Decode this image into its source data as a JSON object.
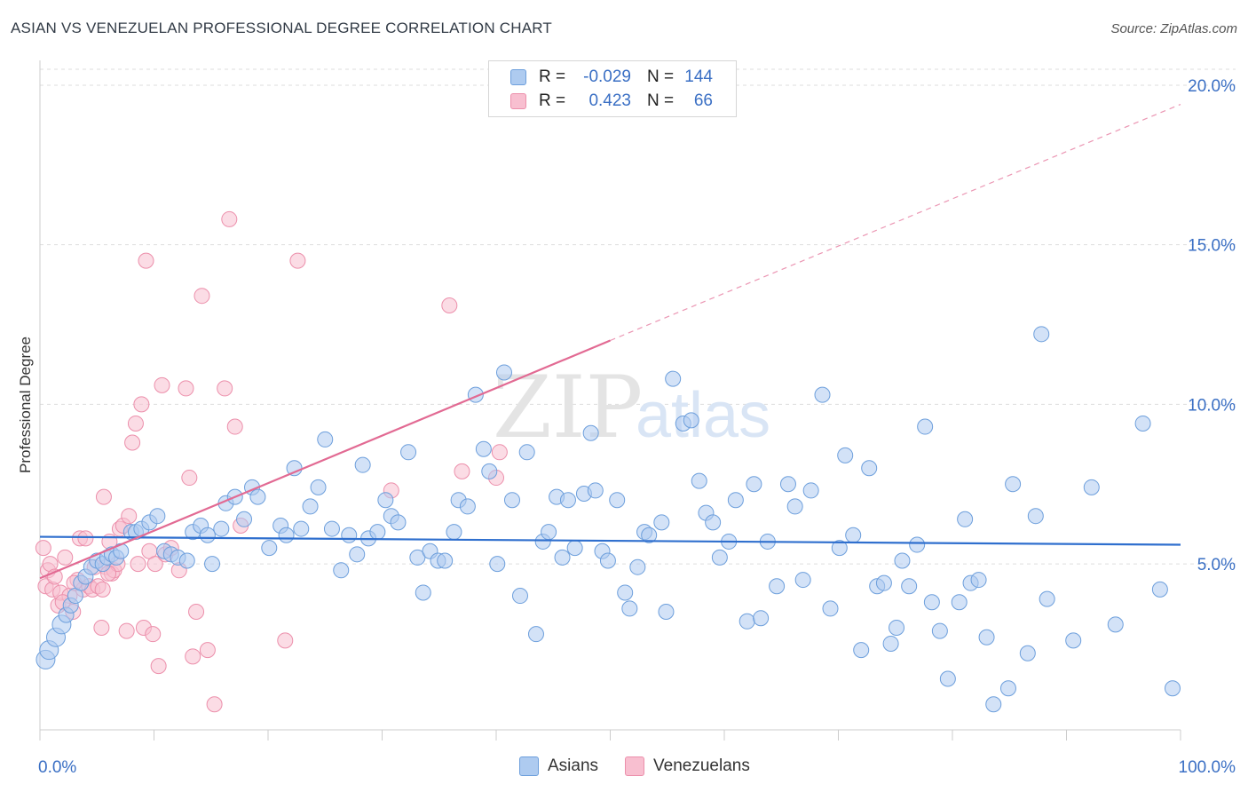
{
  "title": "ASIAN VS VENEZUELAN PROFESSIONAL DEGREE CORRELATION CHART",
  "source": "Source: ZipAtlas.com",
  "watermark": {
    "zip": "ZIP",
    "atlas": "atlas"
  },
  "legend": {
    "rows": [
      {
        "r_label": "R =",
        "r_value": "-0.029",
        "n_label": "N =",
        "n_value": "144"
      },
      {
        "r_label": "R =",
        "r_value": "0.423",
        "n_label": "N =",
        "n_value": "66"
      }
    ]
  },
  "bottom_legend": {
    "asians": "Asians",
    "venezuelans": "Venezuelans"
  },
  "colors": {
    "asian_fill": "#aecbf0",
    "asian_stroke": "#6d9fdc",
    "asian_line": "#2f6fce",
    "venez_fill": "#f8bfd0",
    "venez_stroke": "#ec8fab",
    "venez_line": "#e26a93",
    "axis_label": "#3a6fc4",
    "grid": "#dddddd"
  },
  "chart_data": {
    "type": "scatter",
    "title": "ASIAN VS VENEZUELAN PROFESSIONAL DEGREE CORRELATION CHART",
    "xlabel": "",
    "ylabel": "Professional Degree",
    "xlim": [
      0,
      100
    ],
    "ylim": [
      -0.2,
      20.5
    ],
    "x_tick_labels": [
      "0.0%",
      "100.0%"
    ],
    "y_ticks": [
      5,
      10,
      15,
      20
    ],
    "y_tick_labels": [
      "5.0%",
      "10.0%",
      "15.0%",
      "20.0%"
    ],
    "series": [
      {
        "name": "Asians",
        "r": -0.029,
        "n": 144,
        "trend": {
          "x": [
            0,
            100
          ],
          "y": [
            5.85,
            5.6
          ]
        },
        "points": [
          [
            0.5,
            2.0
          ],
          [
            0.8,
            2.3
          ],
          [
            1.4,
            2.7
          ],
          [
            1.9,
            3.1
          ],
          [
            2.3,
            3.4
          ],
          [
            2.7,
            3.7
          ],
          [
            3.1,
            4.0
          ],
          [
            3.6,
            4.4
          ],
          [
            4.0,
            4.6
          ],
          [
            4.5,
            4.9
          ],
          [
            5.0,
            5.1
          ],
          [
            5.5,
            5.0
          ],
          [
            5.9,
            5.2
          ],
          [
            6.3,
            5.3
          ],
          [
            6.7,
            5.2
          ],
          [
            7.1,
            5.4
          ],
          [
            8.0,
            6.0
          ],
          [
            8.4,
            6.0
          ],
          [
            8.9,
            6.1
          ],
          [
            9.6,
            6.3
          ],
          [
            10.3,
            6.5
          ],
          [
            10.9,
            5.4
          ],
          [
            11.5,
            5.3
          ],
          [
            12.1,
            5.2
          ],
          [
            12.9,
            5.1
          ],
          [
            13.4,
            6.0
          ],
          [
            14.1,
            6.2
          ],
          [
            14.7,
            5.9
          ],
          [
            15.1,
            5.0
          ],
          [
            15.9,
            6.1
          ],
          [
            16.3,
            6.9
          ],
          [
            17.1,
            7.1
          ],
          [
            17.9,
            6.4
          ],
          [
            18.6,
            7.4
          ],
          [
            19.1,
            7.1
          ],
          [
            20.1,
            5.5
          ],
          [
            21.1,
            6.2
          ],
          [
            21.6,
            5.9
          ],
          [
            22.3,
            8.0
          ],
          [
            22.9,
            6.1
          ],
          [
            23.7,
            6.8
          ],
          [
            24.4,
            7.4
          ],
          [
            25.0,
            8.9
          ],
          [
            25.6,
            6.1
          ],
          [
            26.4,
            4.8
          ],
          [
            27.1,
            5.9
          ],
          [
            27.8,
            5.3
          ],
          [
            28.3,
            8.1
          ],
          [
            28.8,
            5.8
          ],
          [
            29.6,
            6.0
          ],
          [
            30.3,
            7.0
          ],
          [
            30.8,
            6.5
          ],
          [
            31.4,
            6.3
          ],
          [
            32.3,
            8.5
          ],
          [
            33.1,
            5.2
          ],
          [
            33.6,
            4.1
          ],
          [
            34.2,
            5.4
          ],
          [
            34.9,
            5.1
          ],
          [
            35.5,
            5.1
          ],
          [
            36.3,
            6.0
          ],
          [
            36.7,
            7.0
          ],
          [
            37.5,
            6.8
          ],
          [
            38.2,
            10.3
          ],
          [
            38.9,
            8.6
          ],
          [
            39.4,
            7.9
          ],
          [
            40.1,
            5.0
          ],
          [
            40.7,
            11.0
          ],
          [
            41.4,
            7.0
          ],
          [
            42.1,
            4.0
          ],
          [
            42.7,
            8.5
          ],
          [
            43.5,
            2.8
          ],
          [
            44.1,
            5.7
          ],
          [
            44.6,
            6.0
          ],
          [
            45.3,
            7.1
          ],
          [
            45.8,
            5.2
          ],
          [
            46.3,
            7.0
          ],
          [
            46.9,
            5.5
          ],
          [
            47.7,
            7.2
          ],
          [
            48.3,
            9.1
          ],
          [
            48.7,
            7.3
          ],
          [
            49.3,
            5.4
          ],
          [
            49.8,
            5.1
          ],
          [
            50.6,
            7.0
          ],
          [
            51.3,
            4.1
          ],
          [
            51.7,
            3.6
          ],
          [
            52.4,
            4.9
          ],
          [
            53.0,
            6.0
          ],
          [
            53.4,
            5.9
          ],
          [
            54.5,
            6.3
          ],
          [
            54.9,
            3.5
          ],
          [
            55.5,
            10.8
          ],
          [
            56.4,
            9.4
          ],
          [
            57.1,
            9.5
          ],
          [
            57.8,
            7.6
          ],
          [
            58.4,
            6.6
          ],
          [
            59.0,
            6.3
          ],
          [
            59.6,
            5.2
          ],
          [
            60.4,
            5.7
          ],
          [
            61.0,
            7.0
          ],
          [
            62.0,
            3.2
          ],
          [
            62.6,
            7.5
          ],
          [
            63.2,
            3.3
          ],
          [
            63.8,
            5.7
          ],
          [
            64.6,
            4.3
          ],
          [
            65.6,
            7.5
          ],
          [
            66.2,
            6.8
          ],
          [
            66.9,
            4.5
          ],
          [
            67.6,
            7.3
          ],
          [
            68.6,
            10.3
          ],
          [
            69.3,
            3.6
          ],
          [
            70.1,
            5.5
          ],
          [
            70.6,
            8.4
          ],
          [
            71.3,
            5.9
          ],
          [
            72.0,
            2.3
          ],
          [
            72.7,
            8.0
          ],
          [
            73.4,
            4.3
          ],
          [
            74.0,
            4.4
          ],
          [
            74.6,
            2.5
          ],
          [
            75.1,
            3.0
          ],
          [
            75.6,
            5.1
          ],
          [
            76.2,
            4.3
          ],
          [
            76.9,
            5.6
          ],
          [
            77.6,
            9.3
          ],
          [
            78.2,
            3.8
          ],
          [
            78.9,
            2.9
          ],
          [
            79.6,
            1.4
          ],
          [
            80.6,
            3.8
          ],
          [
            81.1,
            6.4
          ],
          [
            81.6,
            4.4
          ],
          [
            82.3,
            4.5
          ],
          [
            83.0,
            2.7
          ],
          [
            83.6,
            0.6
          ],
          [
            85.3,
            7.5
          ],
          [
            86.6,
            2.2
          ],
          [
            87.3,
            6.5
          ],
          [
            87.8,
            12.2
          ],
          [
            88.3,
            3.9
          ],
          [
            90.6,
            2.6
          ],
          [
            92.2,
            7.4
          ],
          [
            94.3,
            3.1
          ],
          [
            96.7,
            9.4
          ],
          [
            98.2,
            4.2
          ],
          [
            84.9,
            1.1
          ],
          [
            99.3,
            1.1
          ]
        ]
      },
      {
        "name": "Venezuelans",
        "r": 0.423,
        "n": 66,
        "trend": {
          "x": [
            0,
            50
          ],
          "y": [
            4.55,
            12.0
          ],
          "dashed_extension": {
            "x": [
              50,
              100
            ],
            "y": [
              12.0,
              19.4
            ]
          }
        },
        "points": [
          [
            0.3,
            5.5
          ],
          [
            0.5,
            4.3
          ],
          [
            0.7,
            4.8
          ],
          [
            0.9,
            5.0
          ],
          [
            1.1,
            4.2
          ],
          [
            1.3,
            4.6
          ],
          [
            1.6,
            3.7
          ],
          [
            1.8,
            4.1
          ],
          [
            2.2,
            5.2
          ],
          [
            2.6,
            4.0
          ],
          [
            2.9,
            3.5
          ],
          [
            3.3,
            4.5
          ],
          [
            3.5,
            5.8
          ],
          [
            3.8,
            4.2
          ],
          [
            4.0,
            5.8
          ],
          [
            4.3,
            4.3
          ],
          [
            4.6,
            4.2
          ],
          [
            4.8,
            4.9
          ],
          [
            5.1,
            4.3
          ],
          [
            5.4,
            3.0
          ],
          [
            5.6,
            7.1
          ],
          [
            5.8,
            4.9
          ],
          [
            6.1,
            5.7
          ],
          [
            6.3,
            4.7
          ],
          [
            6.5,
            4.8
          ],
          [
            6.8,
            5.0
          ],
          [
            7.0,
            6.1
          ],
          [
            7.3,
            6.2
          ],
          [
            7.6,
            2.9
          ],
          [
            7.8,
            6.5
          ],
          [
            8.1,
            8.8
          ],
          [
            8.4,
            9.4
          ],
          [
            8.6,
            5.0
          ],
          [
            8.9,
            10.0
          ],
          [
            9.1,
            3.0
          ],
          [
            9.3,
            14.5
          ],
          [
            9.6,
            5.4
          ],
          [
            9.9,
            2.8
          ],
          [
            10.1,
            5.0
          ],
          [
            10.4,
            1.8
          ],
          [
            10.7,
            10.6
          ],
          [
            11.0,
            5.3
          ],
          [
            11.5,
            5.5
          ],
          [
            12.2,
            4.8
          ],
          [
            12.8,
            10.5
          ],
          [
            13.1,
            7.7
          ],
          [
            13.4,
            2.1
          ],
          [
            13.7,
            3.5
          ],
          [
            14.2,
            13.4
          ],
          [
            14.7,
            2.3
          ],
          [
            15.3,
            0.6
          ],
          [
            16.2,
            10.5
          ],
          [
            16.6,
            15.8
          ],
          [
            17.1,
            9.3
          ],
          [
            17.6,
            6.2
          ],
          [
            21.5,
            2.6
          ],
          [
            22.6,
            14.5
          ],
          [
            30.8,
            7.3
          ],
          [
            35.9,
            13.1
          ],
          [
            37.0,
            7.9
          ],
          [
            40.3,
            8.5
          ],
          [
            40.0,
            7.7
          ],
          [
            5.5,
            4.2
          ],
          [
            6.0,
            4.7
          ],
          [
            3.0,
            4.4
          ],
          [
            2.0,
            3.8
          ]
        ]
      }
    ]
  }
}
